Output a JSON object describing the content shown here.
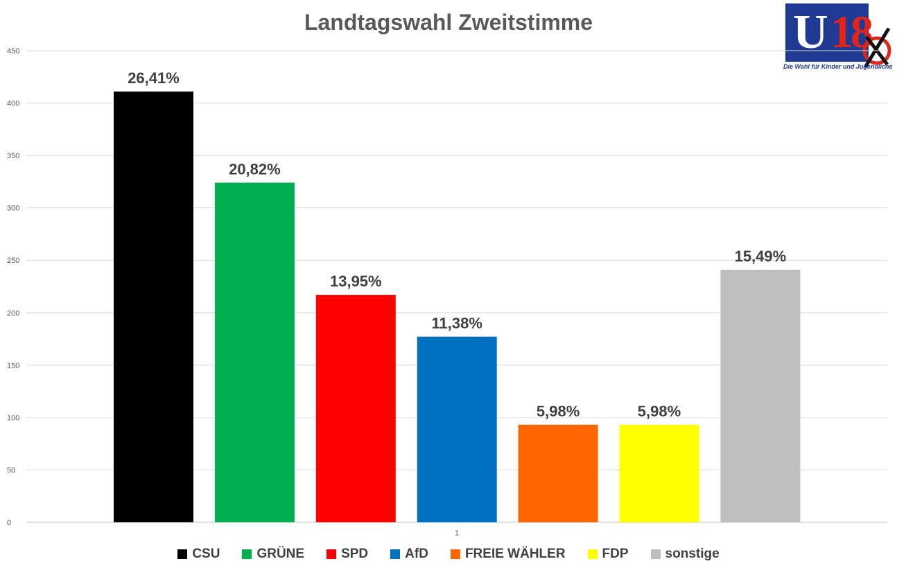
{
  "chart_data": {
    "type": "bar",
    "title": "Landtagswahl Zweitstimme",
    "xlabel": "",
    "ylabel": "",
    "ylim": [
      0,
      450
    ],
    "yticks": [
      0,
      50,
      100,
      150,
      200,
      250,
      300,
      350,
      400,
      450
    ],
    "category_axis_label": "1",
    "grid": true,
    "legend": "bottom",
    "series": [
      {
        "name": "CSU",
        "value": 411,
        "label": "26,41%",
        "color": "#000000"
      },
      {
        "name": "GRÜNE",
        "value": 324,
        "label": "20,82%",
        "color": "#00b050"
      },
      {
        "name": "SPD",
        "value": 217,
        "label": "13,95%",
        "color": "#ff0000"
      },
      {
        "name": "AfD",
        "value": 177,
        "label": "11,38%",
        "color": "#0070c0"
      },
      {
        "name": "FREIE WÄHLER",
        "value": 93,
        "label": "5,98%",
        "color": "#ff6600"
      },
      {
        "name": "FDP",
        "value": 93,
        "label": "5,98%",
        "color": "#ffff00"
      },
      {
        "name": "sonstige",
        "value": 241,
        "label": "15,49%",
        "color": "#bfbfbf"
      }
    ]
  },
  "logo": {
    "letter": "U",
    "number": "18",
    "tagline": "Die Wahl für Kinder und Jugendliche"
  }
}
